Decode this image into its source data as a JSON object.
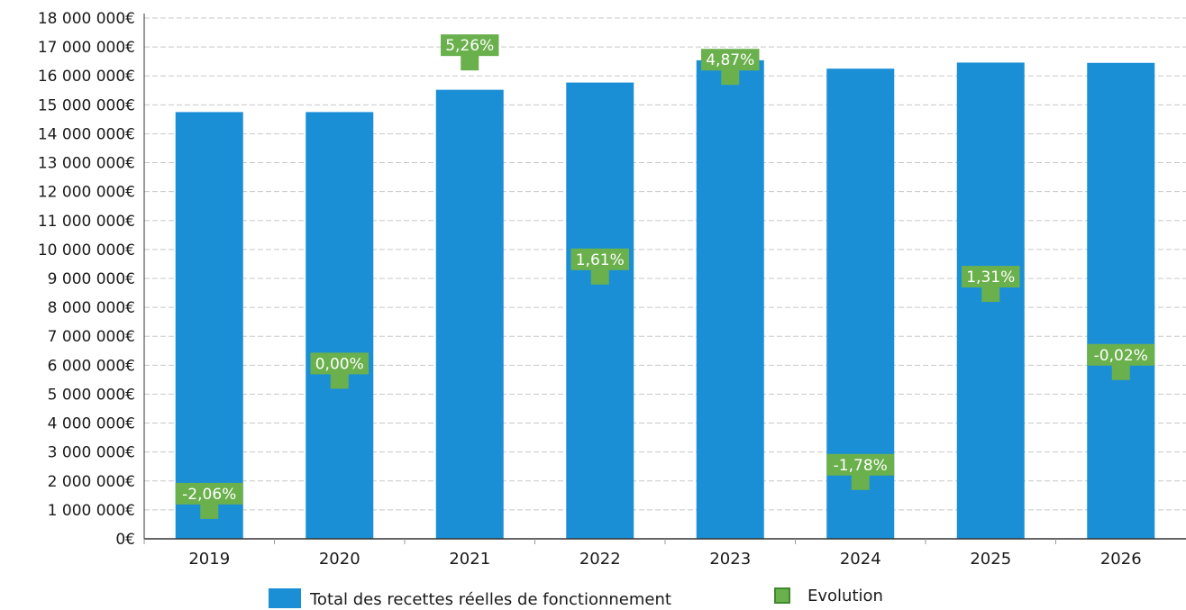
{
  "chart_data": {
    "type": "bar",
    "categories": [
      "2019",
      "2020",
      "2021",
      "2022",
      "2023",
      "2024",
      "2025",
      "2026"
    ],
    "series": [
      {
        "name": "Total des recettes réelles de fonctionnement",
        "color": "#1b8fd6",
        "values": [
          14750000,
          14750000,
          15520000,
          15770000,
          16540000,
          16250000,
          16460000,
          16450000
        ]
      },
      {
        "name": "Evolution",
        "color": "#6ab04c",
        "labels": [
          "-2,06%",
          "0,00%",
          "5,26%",
          "1,61%",
          "4,87%",
          "-1,78%",
          "1,31%",
          "-0,02%"
        ],
        "values": [
          -2.06,
          0.0,
          5.26,
          1.61,
          4.87,
          -1.78,
          1.31,
          -0.02
        ],
        "label_anchor_values": [
          1000000,
          5500000,
          16500000,
          9100000,
          16000000,
          2000000,
          8500000,
          5800000
        ]
      }
    ],
    "ylim": [
      0,
      18000000
    ],
    "yticks": [
      0,
      1000000,
      2000000,
      3000000,
      4000000,
      5000000,
      6000000,
      7000000,
      8000000,
      9000000,
      10000000,
      11000000,
      12000000,
      13000000,
      14000000,
      15000000,
      16000000,
      17000000,
      18000000
    ],
    "ytick_labels": [
      "0€",
      "1 000 000€",
      "2 000 000€",
      "3 000 000€",
      "4 000 000€",
      "5 000 000€",
      "6 000 000€",
      "7 000 000€",
      "8 000 000€",
      "9 000 000€",
      "10 000 000€",
      "11 000 000€",
      "12 000 000€",
      "13 000 000€",
      "14 000 000€",
      "15 000 000€",
      "16 000 000€",
      "17 000 000€",
      "18 000 000€"
    ],
    "grid": true,
    "legend_position": "bottom-center",
    "title": "",
    "xlabel": "",
    "ylabel": ""
  }
}
